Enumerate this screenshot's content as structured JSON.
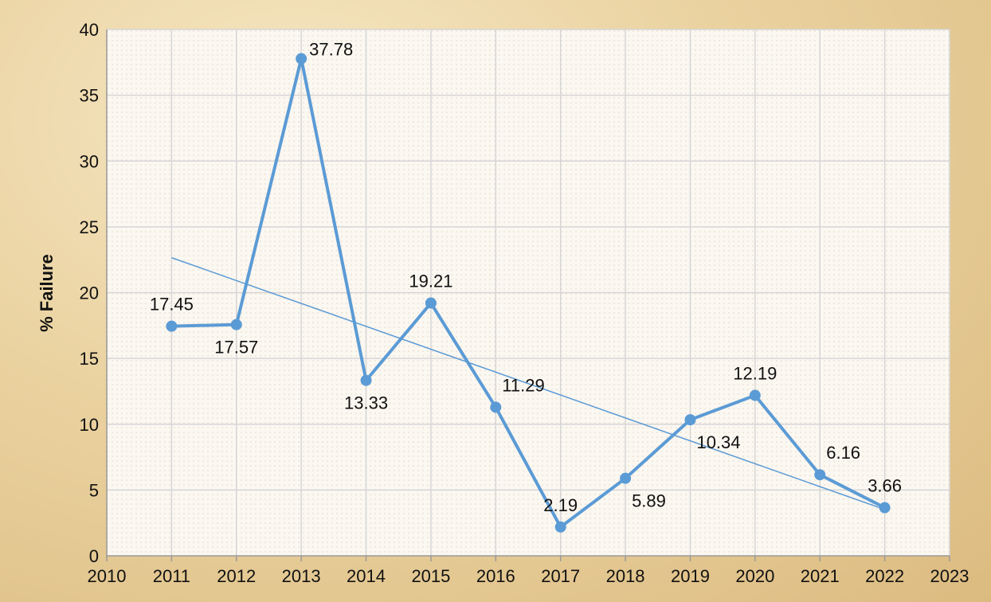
{
  "chart_data": {
    "type": "line",
    "ylabel": "% Failure",
    "xlabel": "",
    "title": "",
    "x": [
      2011,
      2012,
      2013,
      2014,
      2015,
      2016,
      2017,
      2018,
      2019,
      2020,
      2021,
      2022
    ],
    "series": [
      {
        "values": [
          17.45,
          17.57,
          37.78,
          13.33,
          19.21,
          11.29,
          2.19,
          5.89,
          10.34,
          12.19,
          6.16,
          3.66
        ],
        "labels": [
          "17.45",
          "17.57",
          "37.78",
          "13.33",
          "19.21",
          "11.29",
          "2.19",
          "5.89",
          "10.34",
          "12.19",
          "6.16",
          "3.66"
        ],
        "color": "#5b9bd5"
      }
    ],
    "trendline": {
      "type": "linear",
      "color": "#5b9bd5"
    },
    "xlim": [
      2010,
      2023
    ],
    "ylim": [
      0,
      40
    ],
    "xticks": [
      "2010",
      "2011",
      "2012",
      "2013",
      "2014",
      "2015",
      "2016",
      "2017",
      "2018",
      "2019",
      "2020",
      "2021",
      "2022",
      "2023"
    ],
    "yticks": [
      "0",
      "5",
      "10",
      "15",
      "20",
      "25",
      "30",
      "35",
      "40"
    ],
    "grid": true,
    "legend": "none"
  }
}
